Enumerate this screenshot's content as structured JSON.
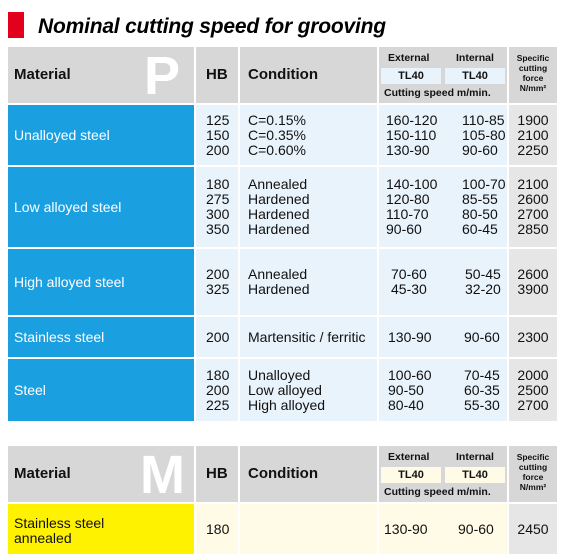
{
  "title": "Nominal cutting speed for grooving",
  "tables": [
    {
      "letter": "P",
      "header": {
        "material": "Material",
        "hb": "HB",
        "condition": "Condition",
        "external": "External",
        "internal": "Internal",
        "tl_ext": "TL40",
        "tl_int": "TL40",
        "cutting_speed": "Cutting speed m/min.",
        "specific": "Specific",
        "cutting": "cutting",
        "force": "force",
        "unit": "N/mm²"
      },
      "rows": [
        {
          "material": "Unalloyed steel",
          "hb": [
            "125",
            "150",
            "200"
          ],
          "condition": [
            "C=0.15%",
            "C=0.35%",
            "C=0.60%"
          ],
          "external": [
            "160-120",
            "150-110",
            "130-90"
          ],
          "internal": [
            "110-85",
            "105-80",
            "90-60"
          ],
          "force": [
            "1900",
            "2100",
            "2250"
          ]
        },
        {
          "material": "Low alloyed steel",
          "hb": [
            "180",
            "275",
            "300",
            "350"
          ],
          "condition": [
            "Annealed",
            "Hardened",
            "Hardened",
            "Hardened"
          ],
          "external": [
            "140-100",
            "120-80",
            "110-70",
            "90-60"
          ],
          "internal": [
            "100-70",
            "85-55",
            "80-50",
            "60-45"
          ],
          "force": [
            "2100",
            "2600",
            "2700",
            "2850"
          ]
        },
        {
          "material": "High alloyed steel",
          "hb": [
            "200",
            "325"
          ],
          "condition": [
            "Annealed",
            "Hardened"
          ],
          "external": [
            "70-60",
            "45-30"
          ],
          "internal": [
            "50-45",
            "32-20"
          ],
          "force": [
            "2600",
            "3900"
          ]
        },
        {
          "material": "Stainless steel",
          "hb": [
            "200"
          ],
          "condition": [
            "Martensitic / ferritic"
          ],
          "external": [
            "130-90"
          ],
          "internal": [
            "90-60"
          ],
          "force": [
            "2300"
          ]
        },
        {
          "material": "Steel",
          "hb": [
            "180",
            "200",
            "225"
          ],
          "condition": [
            "Unalloyed",
            "Low alloyed",
            "High alloyed"
          ],
          "external": [
            "100-60",
            "90-50",
            "80-40"
          ],
          "internal": [
            "70-45",
            "60-35",
            "55-30"
          ],
          "force": [
            "2000",
            "2500",
            "2700"
          ]
        }
      ]
    },
    {
      "letter": "M",
      "header": {
        "material": "Material",
        "hb": "HB",
        "condition": "Condition",
        "external": "External",
        "internal": "Internal",
        "tl_ext": "TL40",
        "tl_int": "TL40",
        "cutting_speed": "Cutting speed m/min.",
        "specific": "Specific",
        "cutting": "cutting",
        "force": "force",
        "unit": "N/mm²"
      },
      "rows": [
        {
          "material": "Stainless steel annealed",
          "hb": [
            "180"
          ],
          "condition": [
            ""
          ],
          "external": [
            "130-90"
          ],
          "internal": [
            "90-60"
          ],
          "force": [
            "2450"
          ]
        }
      ]
    }
  ]
}
